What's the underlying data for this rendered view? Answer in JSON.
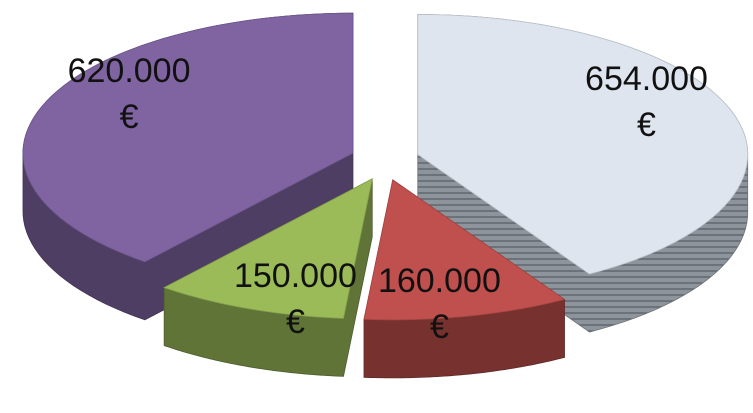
{
  "chart_data": {
    "type": "pie3d",
    "values": [
      654000,
      160000,
      150000,
      620000
    ],
    "value_labels": [
      "654.000 €",
      "160.000 €",
      "150.000 €",
      "620.000 €"
    ],
    "colors": [
      "#dfe5ef",
      "#c0504d",
      "#9bbb59",
      "#8064a2"
    ]
  }
}
